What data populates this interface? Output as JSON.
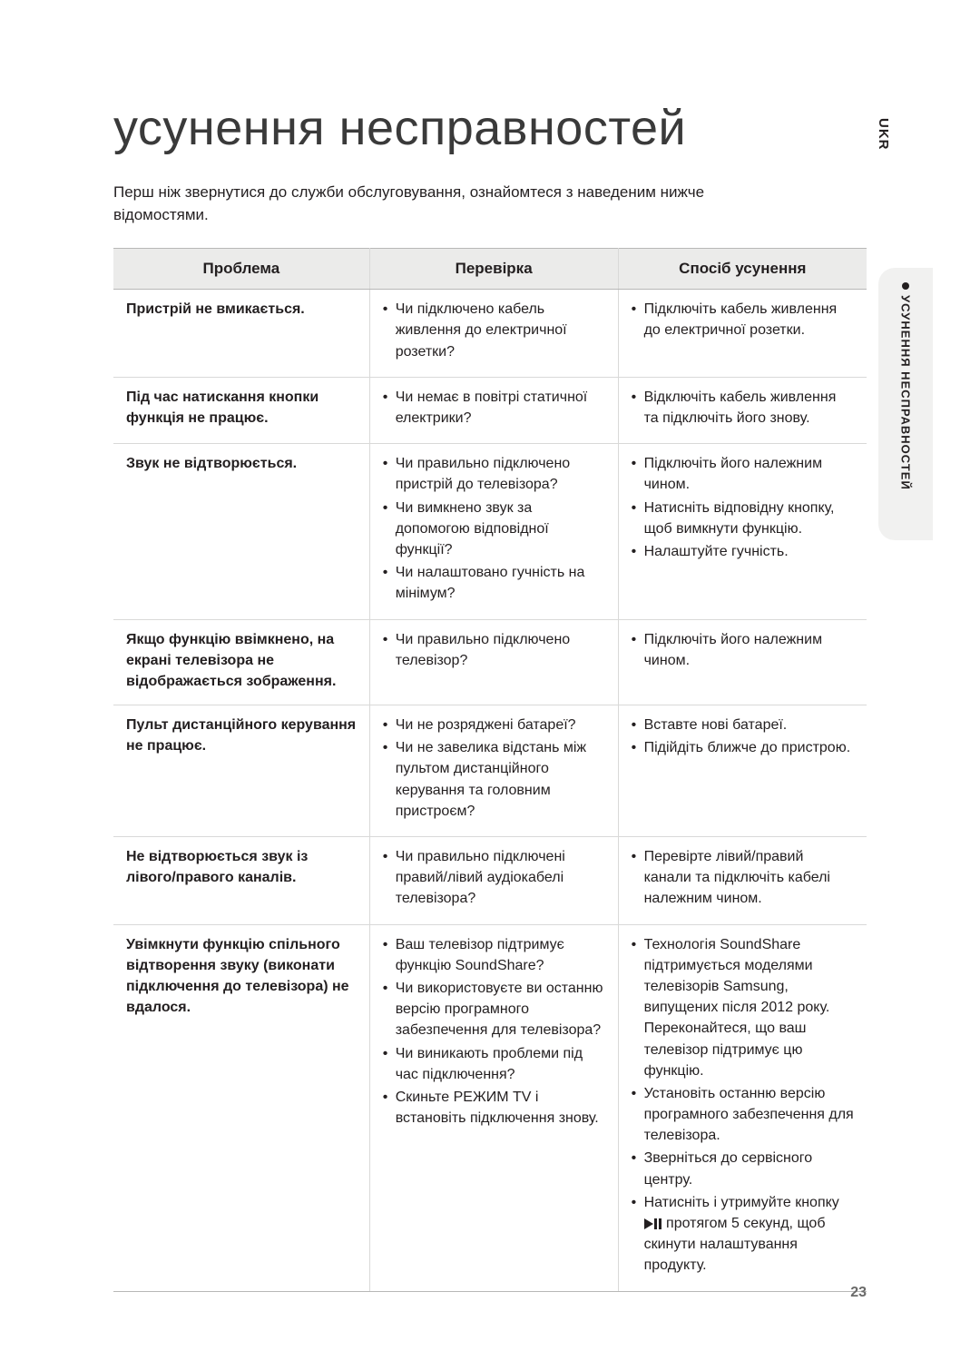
{
  "side": {
    "lang": "UKR",
    "section": "УСУНЕННЯ НЕСПРАВНОСТЕЙ"
  },
  "title": "усунення несправностей",
  "intro": "Перш ніж звернутися до служби обслуговування, ознайомтеся з наведеним нижче відомостями.",
  "headers": {
    "problem": "Проблема",
    "check": "Перевірка",
    "fix": "Спосіб усунення"
  },
  "rows": [
    {
      "problem": "Пристрій не вмикається.",
      "checks": [
        "Чи підключено кабель живлення до електричної розетки?"
      ],
      "fixes": [
        "Підключіть кабель живлення до електричної розетки."
      ]
    },
    {
      "problem": "Під час натискання кнопки функція не працює.",
      "checks": [
        "Чи немає в повітрі статичної електрики?"
      ],
      "fixes": [
        "Відключіть кабель живлення та підключіть його знову."
      ]
    },
    {
      "problem": "Звук не відтворюється.",
      "checks": [
        "Чи правильно підключено пристрій до телевізора?",
        "Чи вимкнено звук за допомогою відповідної функції?",
        "Чи налаштовано гучність на мінімум?"
      ],
      "fixes": [
        "Підключіть його належним чином.",
        "Натисніть відповідну кнопку, щоб вимкнути функцію.",
        "Налаштуйте гучність."
      ]
    },
    {
      "problem": "Якщо функцію ввімкнено, на екрані телевізора не відображається зображення.",
      "checks": [
        "Чи правильно підключено телевізор?"
      ],
      "fixes": [
        "Підключіть його належним чином."
      ]
    },
    {
      "problem": "Пульт дистанційного керування не працює.",
      "checks": [
        "Чи не розряджені батареї?",
        "Чи не завелика відстань між пультом дистанційного керування та головним пристроєм?"
      ],
      "fixes": [
        "Вставте нові батареї.",
        "Підійдіть ближче до пристрою."
      ]
    },
    {
      "problem": "Не відтворюється звук із лівого/правого каналів.",
      "checks": [
        "Чи правильно підключені правий/лівий аудіокабелі телевізора?"
      ],
      "fixes": [
        "Перевірте лівий/правий канали та підключіть кабелі належним чином."
      ]
    },
    {
      "problem": "Увімкнути функцію спільного відтворення звуку (виконати підключення до телевізора) не вдалося.",
      "checks": [
        "Ваш телевізор підтримує функцію SoundShare?",
        "Чи використовуєте ви останню версію програмного забезпечення для телевізора?",
        "Чи виникають проблеми під час підключення?",
        "Скиньте РЕЖИМ TV і встановіть підключення знову."
      ],
      "fixes_html": true,
      "fixes": [
        "Технологія SoundShare підтримується моделями телевізорів Samsung, випущених після 2012 року. Переконайтеся, що ваш телевізор підтримує цю функцію.",
        "Установіть останню версію програмного забезпечення для телевізора.",
        "Зверніться до сервісного центру.",
        "Натисніть і утримуйте кнопку ▶❚❚ протягом 5 секунд, щоб скинути налаштування продукту."
      ]
    }
  ],
  "page_number": "23"
}
